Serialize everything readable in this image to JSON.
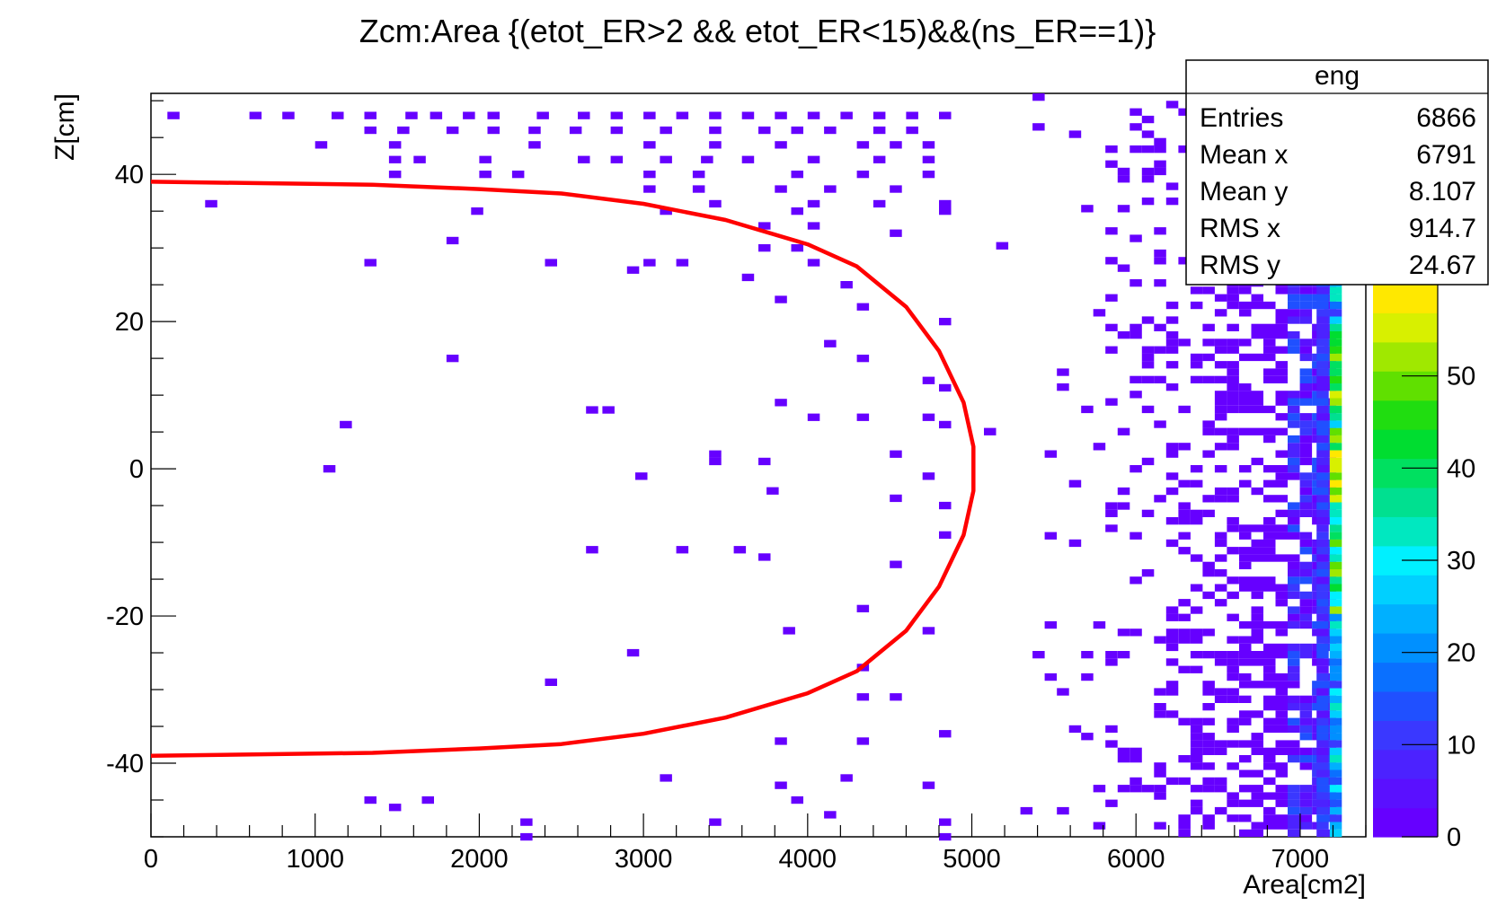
{
  "chart_data": {
    "type": "heatmap",
    "title": "Zcm:Area {(etot_ER>2 && etot_ER<15)&&(ns_ER==1)}",
    "xlabel": "Area[cm2]",
    "ylabel": "Z[cm]",
    "xlim": [
      0,
      7400
    ],
    "ylim": [
      -50,
      51
    ],
    "x_ticks": [
      0,
      1000,
      2000,
      3000,
      4000,
      5000,
      6000,
      7000
    ],
    "y_ticks": [
      -40,
      -20,
      0,
      20,
      40
    ],
    "x_tick_labels": [
      "0",
      "1000",
      "2000",
      "3000",
      "4000",
      "5000",
      "6000",
      "7000"
    ],
    "y_tick_labels": [
      "-40",
      "-20",
      "0",
      "20",
      "40"
    ],
    "colorbar": {
      "range": [
        0,
        60
      ],
      "ticks": [
        0,
        10,
        20,
        30,
        40,
        50
      ],
      "tick_labels": [
        "0",
        "10",
        "20",
        "30",
        "40",
        "50"
      ],
      "colors": [
        "#6600ff",
        "#5a10ff",
        "#4c22ff",
        "#3a38ff",
        "#2050ff",
        "#0a70ff",
        "#0090ff",
        "#00b0ff",
        "#00d0ff",
        "#00f0ff",
        "#00e8c0",
        "#00e090",
        "#00e060",
        "#00dd30",
        "#20dd10",
        "#60e000",
        "#a0e800",
        "#d8f000",
        "#ffe800"
      ]
    },
    "stats_box": {
      "name": "eng",
      "rows": [
        {
          "label": "Entries",
          "value": "6866"
        },
        {
          "label": "Mean x",
          "value": "6791"
        },
        {
          "label": "Mean y",
          "value": "8.107"
        },
        {
          "label": "RMS x",
          "value": "914.7"
        },
        {
          "label": "RMS y",
          "value": "24.67"
        }
      ]
    },
    "curve": {
      "color": "#ff0000",
      "description": "fiducial boundary",
      "points": [
        [
          0,
          39
        ],
        [
          1350,
          38.6
        ],
        [
          2000,
          38
        ],
        [
          2500,
          37.4
        ],
        [
          3000,
          36
        ],
        [
          3500,
          33.8
        ],
        [
          4000,
          30.5
        ],
        [
          4300,
          27.5
        ],
        [
          4600,
          22
        ],
        [
          4800,
          16
        ],
        [
          4950,
          9
        ],
        [
          5010,
          3
        ],
        [
          5010,
          -3
        ],
        [
          4950,
          -9
        ],
        [
          4800,
          -16
        ],
        [
          4600,
          -22
        ],
        [
          4300,
          -27.5
        ],
        [
          4000,
          -30.5
        ],
        [
          3500,
          -33.8
        ],
        [
          3000,
          -36
        ],
        [
          2500,
          -37.4
        ],
        [
          2000,
          -38
        ],
        [
          1350,
          -38.6
        ],
        [
          0,
          -39
        ]
      ]
    },
    "bins": {
      "x_bin_width": 74,
      "y_bin_width": 1.01,
      "sparse_points": [
        [
          100,
          48
        ],
        [
          600,
          48
        ],
        [
          800,
          48
        ],
        [
          1100,
          48
        ],
        [
          1300,
          48
        ],
        [
          1550,
          48
        ],
        [
          1700,
          48
        ],
        [
          1900,
          48
        ],
        [
          2050,
          48
        ],
        [
          2350,
          48
        ],
        [
          2600,
          48
        ],
        [
          2800,
          48
        ],
        [
          3000,
          48
        ],
        [
          3200,
          48
        ],
        [
          3400,
          48
        ],
        [
          3600,
          48
        ],
        [
          3800,
          48
        ],
        [
          4000,
          48
        ],
        [
          4200,
          48
        ],
        [
          4400,
          48
        ],
        [
          4600,
          48
        ],
        [
          4800,
          48
        ],
        [
          1300,
          46
        ],
        [
          1500,
          46
        ],
        [
          1800,
          46
        ],
        [
          2050,
          46
        ],
        [
          2300,
          46
        ],
        [
          2550,
          46
        ],
        [
          2800,
          46
        ],
        [
          3100,
          46
        ],
        [
          3400,
          46
        ],
        [
          3700,
          46
        ],
        [
          3900,
          46
        ],
        [
          4100,
          46
        ],
        [
          4400,
          46
        ],
        [
          4600,
          46
        ],
        [
          1000,
          44
        ],
        [
          1450,
          44
        ],
        [
          2300,
          44
        ],
        [
          3000,
          44
        ],
        [
          3400,
          44
        ],
        [
          3800,
          44
        ],
        [
          4300,
          44
        ],
        [
          4500,
          44
        ],
        [
          4700,
          44
        ],
        [
          1450,
          42
        ],
        [
          1600,
          42
        ],
        [
          2000,
          42
        ],
        [
          2600,
          42
        ],
        [
          2800,
          42
        ],
        [
          3100,
          42
        ],
        [
          3350,
          42
        ],
        [
          3600,
          42
        ],
        [
          4000,
          42
        ],
        [
          4400,
          42
        ],
        [
          4700,
          42
        ],
        [
          1450,
          40
        ],
        [
          2000,
          40
        ],
        [
          2200,
          40
        ],
        [
          3000,
          40
        ],
        [
          3300,
          40
        ],
        [
          3900,
          40
        ],
        [
          4300,
          40
        ],
        [
          4700,
          40
        ],
        [
          3000,
          38
        ],
        [
          3300,
          38
        ],
        [
          3800,
          38
        ],
        [
          4100,
          38
        ],
        [
          4500,
          38
        ],
        [
          330,
          36
        ],
        [
          3400,
          36
        ],
        [
          4000,
          36
        ],
        [
          4400,
          36
        ],
        [
          4800,
          36
        ],
        [
          1950,
          35
        ],
        [
          3100,
          35
        ],
        [
          3900,
          35
        ],
        [
          4800,
          35
        ],
        [
          3700,
          33
        ],
        [
          4000,
          33
        ],
        [
          4500,
          32
        ],
        [
          1800,
          31
        ],
        [
          3700,
          30
        ],
        [
          3900,
          30
        ],
        [
          1300,
          28
        ],
        [
          2400,
          28
        ],
        [
          3000,
          28
        ],
        [
          3200,
          28
        ],
        [
          4000,
          28
        ],
        [
          2900,
          27
        ],
        [
          3600,
          26
        ],
        [
          4200,
          25
        ],
        [
          3800,
          23
        ],
        [
          4300,
          22
        ],
        [
          4800,
          20
        ],
        [
          4100,
          17
        ],
        [
          1800,
          15
        ],
        [
          4300,
          15
        ],
        [
          4700,
          12
        ],
        [
          4800,
          11
        ],
        [
          3800,
          9
        ],
        [
          2650,
          8
        ],
        [
          2750,
          8
        ],
        [
          1150,
          6
        ],
        [
          4000,
          7
        ],
        [
          4300,
          7
        ],
        [
          4700,
          7
        ],
        [
          4800,
          6
        ],
        [
          3400,
          2
        ],
        [
          3400,
          1
        ],
        [
          3700,
          1
        ],
        [
          4500,
          2
        ],
        [
          1050,
          0
        ],
        [
          2950,
          -1
        ],
        [
          4700,
          -1
        ],
        [
          3750,
          -3
        ],
        [
          4500,
          -4
        ],
        [
          4800,
          -5
        ],
        [
          4800,
          -9
        ],
        [
          2650,
          -11
        ],
        [
          3200,
          -11
        ],
        [
          3550,
          -11
        ],
        [
          3700,
          -12
        ],
        [
          4500,
          -13
        ],
        [
          4300,
          -19
        ],
        [
          3850,
          -22
        ],
        [
          4700,
          -22
        ],
        [
          2900,
          -25
        ],
        [
          4300,
          -27
        ],
        [
          2400,
          -29
        ],
        [
          4300,
          -31
        ],
        [
          4500,
          -31
        ],
        [
          3800,
          -37
        ],
        [
          4300,
          -37
        ],
        [
          4800,
          -36
        ],
        [
          3100,
          -42
        ],
        [
          3800,
          -43
        ],
        [
          4200,
          -42
        ],
        [
          4700,
          -43
        ],
        [
          1300,
          -45
        ],
        [
          1450,
          -46
        ],
        [
          1650,
          -45
        ],
        [
          3900,
          -45
        ],
        [
          4100,
          -47
        ],
        [
          2250,
          -48
        ],
        [
          3400,
          -48
        ],
        [
          4800,
          -48
        ],
        [
          2250,
          -50
        ],
        [
          4800,
          -50
        ]
      ],
      "dense_columns_note": "band between 5000 and 7200 densely populated; rightmost column at ~7150-7200 carries highest counts (up to ~60)"
    }
  }
}
